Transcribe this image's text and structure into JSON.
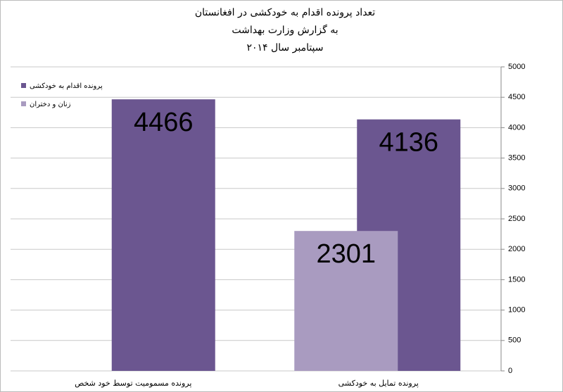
{
  "chart_data": {
    "type": "bar",
    "title": [
      "تعداد پرونده اقدام به خودکشی در افغانستان",
      "به گزارش وزارت بهداشت",
      "سپتامبر سال ۲۰۱۴"
    ],
    "categories": [
      "پرونده مسمومیت توسط خود شخص",
      "پرونده تمایل به خودکشی"
    ],
    "series": [
      {
        "name": "پرونده اقدام به خودکشی",
        "color": "#6b5690",
        "values": [
          4466,
          4136
        ]
      },
      {
        "name": "زنان و دختران",
        "color": "#a99bc0",
        "values": [
          null,
          2301
        ]
      }
    ],
    "ylim": [
      0,
      5000
    ],
    "yticks": [
      0,
      500,
      1000,
      1500,
      2000,
      2500,
      3000,
      3500,
      4000,
      4500,
      5000
    ],
    "grid": true,
    "legend": "top-left",
    "y_axis_side": "right"
  }
}
